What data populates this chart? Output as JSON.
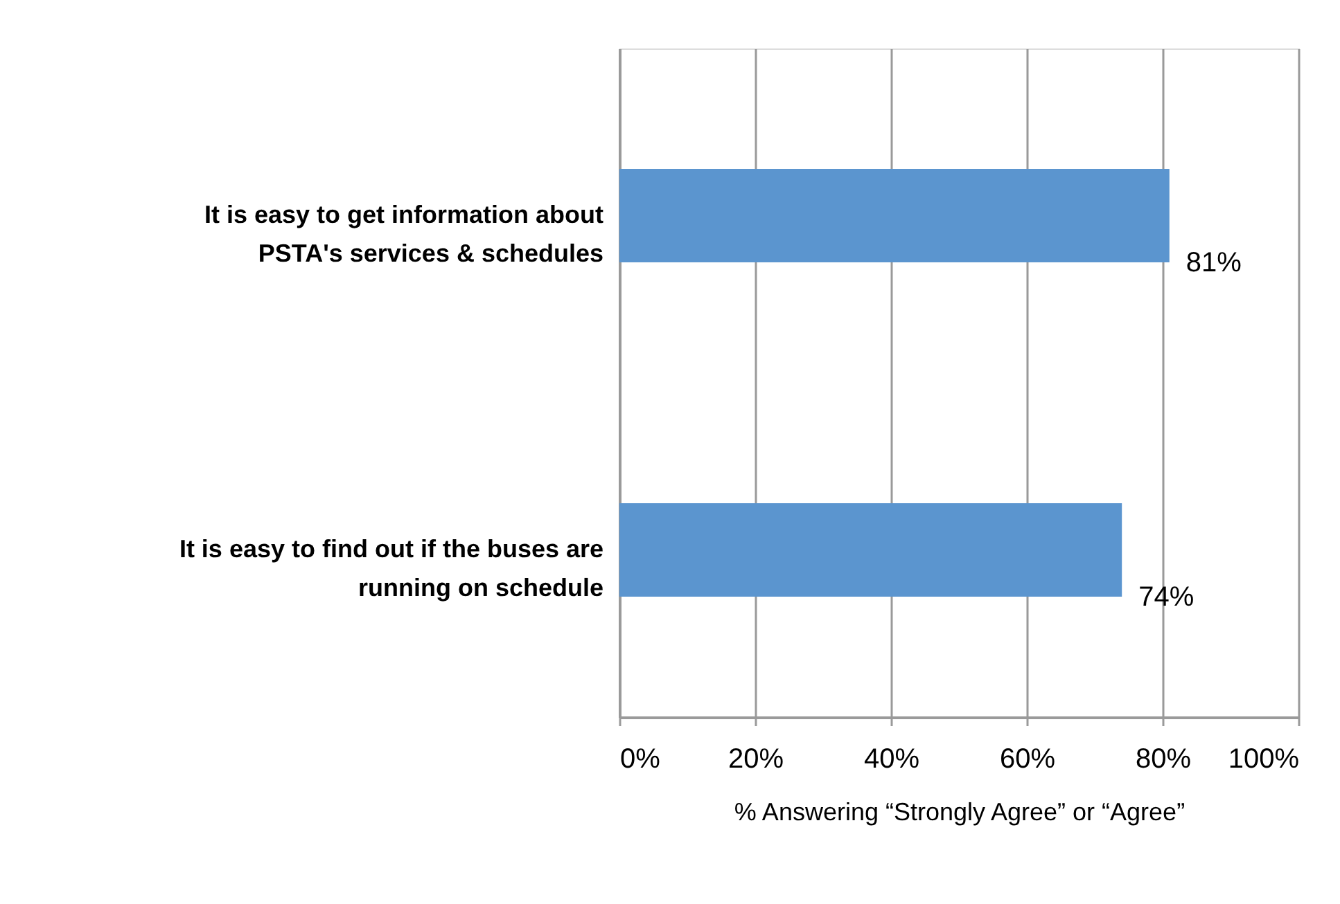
{
  "chart_data": {
    "type": "bar",
    "orientation": "horizontal",
    "categories": [
      "It is easy to get information about  PSTA's services & schedules",
      "It is easy to find out if the buses are running on schedule"
    ],
    "values": [
      81,
      74
    ],
    "color": "#5b95cf",
    "value_labels": [
      "81%",
      "74%"
    ],
    "xlim": [
      0,
      100
    ],
    "xticks": [
      {
        "value": 0,
        "label": "0%"
      },
      {
        "value": 20,
        "label": "20%"
      },
      {
        "value": 40,
        "label": "40%"
      },
      {
        "value": 60,
        "label": "60%"
      },
      {
        "value": 80,
        "label": "80%"
      },
      {
        "value": 100,
        "label": "100%"
      }
    ],
    "xlabel": "% Answering “Strongly Agree” or “Agree”",
    "grid": "x"
  }
}
